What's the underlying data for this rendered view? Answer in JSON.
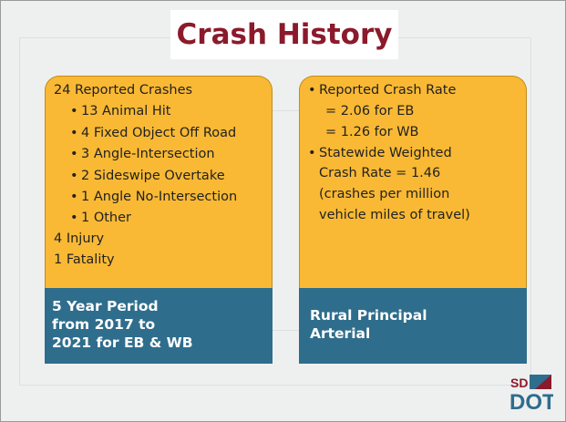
{
  "title": "Crash History",
  "left": {
    "lines": [
      "24 Reported Crashes",
      "13 Animal Hit",
      "4 Fixed Object Off Road",
      "3 Angle-Intersection",
      "2 Sideswipe Overtake",
      "1 Angle No-Intersection",
      "1 Other",
      "4 Injury",
      "1 Fatality"
    ],
    "footer": [
      "5 Year Period",
      "from 2017 to",
      "2021 for EB & WB"
    ]
  },
  "right": {
    "lines": [
      "Reported Crash Rate",
      "= 2.06 for EB",
      "= 1.26 for WB",
      "Statewide Weighted",
      "Crash Rate = 1.46",
      "(crashes per million",
      "vehicle miles of travel)"
    ],
    "footer": [
      "Rural Principal",
      "Arterial"
    ]
  },
  "logo": {
    "top": "SD",
    "bottom": "DOT"
  }
}
